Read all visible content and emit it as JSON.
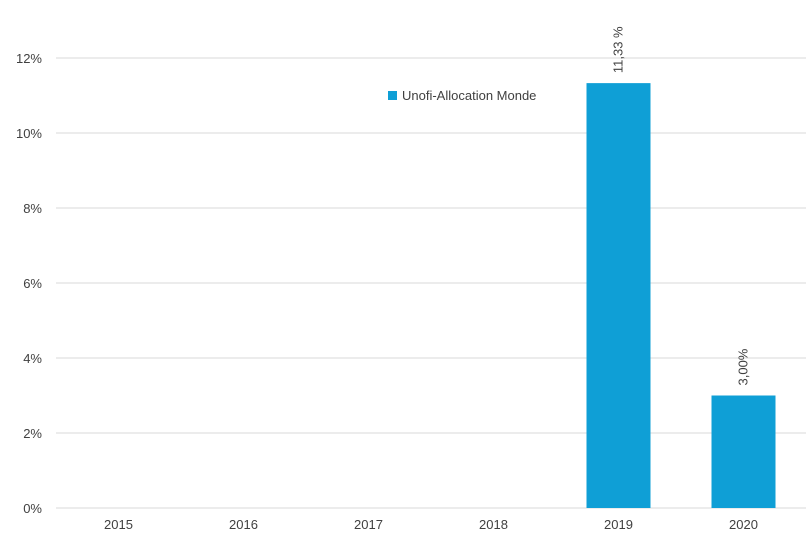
{
  "chart_data": {
    "type": "bar",
    "categories": [
      "2015",
      "2016",
      "2017",
      "2018",
      "2019",
      "2020"
    ],
    "series": [
      {
        "name": "Unofi-Allocation Monde",
        "values": [
          null,
          null,
          null,
          null,
          11.33,
          3.0
        ],
        "data_labels": [
          "",
          "",
          "",
          "",
          "11,33 %",
          "3,00%"
        ]
      }
    ],
    "ylim": [
      0,
      12
    ],
    "yticks": [
      "0%",
      "2%",
      "4%",
      "6%",
      "8%",
      "10%",
      "12%"
    ],
    "grid": true,
    "legend_position": "top-center-right",
    "colors": {
      "bar": "#0F9FD6",
      "grid": "#D9D9D9",
      "text": "#404040"
    }
  }
}
